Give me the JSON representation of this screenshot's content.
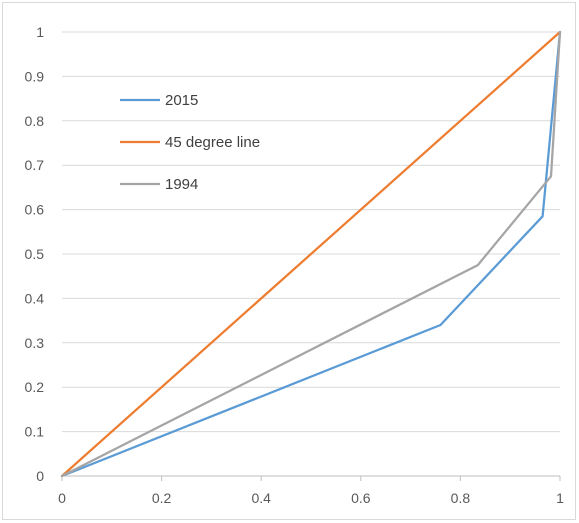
{
  "chart_data": {
    "type": "line",
    "title": "",
    "xlabel": "",
    "ylabel": "",
    "xlim": [
      0,
      1
    ],
    "ylim": [
      0,
      1
    ],
    "x_ticks": [
      "0",
      "0.2",
      "0.4",
      "0.6",
      "0.8",
      "1"
    ],
    "y_ticks": [
      "0",
      "0.1",
      "0.2",
      "0.3",
      "0.4",
      "0.5",
      "0.6",
      "0.7",
      "0.8",
      "0.9",
      "1"
    ],
    "grid": "horizontal",
    "legend_position": "top-left",
    "series": [
      {
        "name": "2015",
        "color": "#5b9bd5",
        "points": [
          [
            0,
            0
          ],
          [
            0.76,
            0.34
          ],
          [
            0.965,
            0.585
          ],
          [
            1,
            1
          ]
        ]
      },
      {
        "name": "45 degree line",
        "color": "#ed7d31",
        "points": [
          [
            0,
            0
          ],
          [
            1,
            1
          ]
        ]
      },
      {
        "name": "1994",
        "color": "#a5a5a5",
        "points": [
          [
            0,
            0
          ],
          [
            0.835,
            0.475
          ],
          [
            0.982,
            0.675
          ],
          [
            1,
            1
          ]
        ]
      }
    ]
  }
}
